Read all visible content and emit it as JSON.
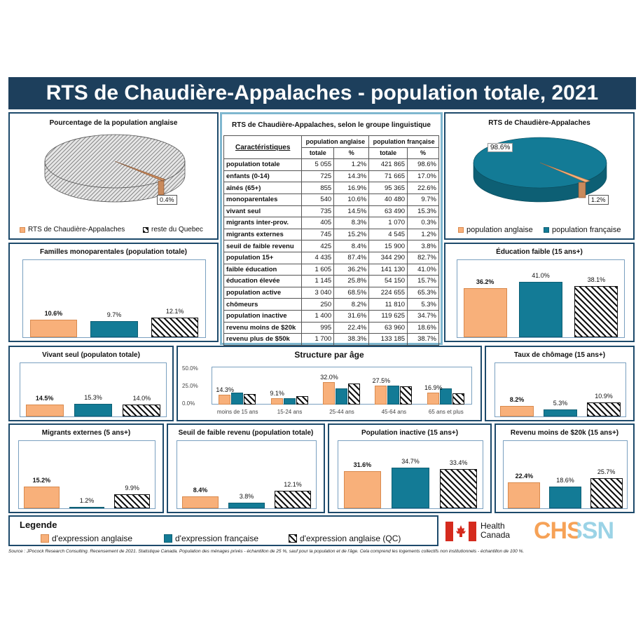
{
  "title": "RTS de Chaudière-Appalaches - population totale, 2021",
  "colors": {
    "anglais": "#f8b07a",
    "francais": "#137b96",
    "qc": "hatched"
  },
  "pie_left": {
    "title": "Pourcentage  de la population  anglaise",
    "label": "0.4%",
    "legend": [
      "RTS de Chaudière-Appalaches",
      "reste du Quebec"
    ]
  },
  "pie_right": {
    "title": "RTS de Chaudière-Appalaches",
    "label_big": "98.6%",
    "label_small": "1.2%",
    "legend": [
      "population anglaise",
      "population française"
    ]
  },
  "table": {
    "caption": "RTS de Chaudière-Appalaches, selon le groupe linguistique",
    "col_char": "Caractéristiques",
    "col_en": "population anglaise",
    "col_fr": "population française",
    "sub_total": "totale",
    "sub_pct": "%",
    "rows": [
      [
        "population totale",
        "5 055",
        "1.2%",
        "421 865",
        "98.6%"
      ],
      [
        "enfants (0-14)",
        "725",
        "14.3%",
        "71 665",
        "17.0%"
      ],
      [
        "aînés (65+)",
        "855",
        "16.9%",
        "95 365",
        "22.6%"
      ],
      [
        "monoparentales",
        "540",
        "10.6%",
        "40 480",
        "9.7%"
      ],
      [
        "vivant seul",
        "735",
        "14.5%",
        "63 490",
        "15.3%"
      ],
      [
        "migrants inter-prov.",
        "405",
        "8.3%",
        "1 070",
        "0.3%"
      ],
      [
        "migrants externes",
        "745",
        "15.2%",
        "4 545",
        "1.2%"
      ],
      [
        "seuil de faible revenu",
        "425",
        "8.4%",
        "15 900",
        "3.8%"
      ],
      [
        "population 15+",
        "4 435",
        "87.4%",
        "344 290",
        "82.7%"
      ],
      [
        "faible éducation",
        "1 605",
        "36.2%",
        "141 130",
        "41.0%"
      ],
      [
        "éducation élevée",
        "1 145",
        "25.8%",
        "54 150",
        "15.7%"
      ],
      [
        "population active",
        "3 040",
        "68.5%",
        "224 655",
        "65.3%"
      ],
      [
        "chômeurs",
        "250",
        "8.2%",
        "11 810",
        "5.3%"
      ],
      [
        "population inactive",
        "1 400",
        "31.6%",
        "119 625",
        "34.7%"
      ],
      [
        "revenu moins de $20k",
        "995",
        "22.4%",
        "63 960",
        "18.6%"
      ],
      [
        "revenu plus de $50k",
        "1 700",
        "38.3%",
        "133 185",
        "38.7%"
      ]
    ]
  },
  "chart_data": [
    {
      "id": "familles",
      "type": "bar",
      "title": "Familles monoparentales  (population  totale)",
      "values": [
        10.6,
        9.7,
        12.1
      ],
      "labels": [
        "10.6%",
        "9.7%",
        "12.1%"
      ],
      "ylim": [
        0,
        45
      ]
    },
    {
      "id": "education",
      "type": "bar",
      "title": "Éducation faible (15 ans+)",
      "values": [
        36.2,
        41.0,
        38.1
      ],
      "labels": [
        "36.2%",
        "41.0%",
        "38.1%"
      ],
      "ylim": [
        0,
        55
      ]
    },
    {
      "id": "vivant",
      "type": "bar",
      "title": "Vivant seul (populaton totale)",
      "values": [
        14.5,
        15.3,
        14.0
      ],
      "labels": [
        "14.5%",
        "15.3%",
        "14.0%"
      ],
      "ylim": [
        0,
        60
      ]
    },
    {
      "id": "chomage",
      "type": "bar",
      "title": "Taux de chômage (15 ans+)",
      "values": [
        8.2,
        5.3,
        10.9
      ],
      "labels": [
        "8.2%",
        "5.3%",
        "10.9%"
      ],
      "ylim": [
        0,
        40
      ]
    },
    {
      "id": "migrants",
      "type": "bar",
      "title": "Migrants externes (5 ans+)",
      "values": [
        15.2,
        1.2,
        9.9
      ],
      "labels": [
        "15.2%",
        "1.2%",
        "9.9%"
      ],
      "ylim": [
        0,
        45
      ]
    },
    {
      "id": "seuil",
      "type": "bar",
      "title": "Seuil de faible revenu (population totale)",
      "values": [
        8.4,
        3.8,
        12.1
      ],
      "labels": [
        "8.4%",
        "3.8%",
        "12.1%"
      ],
      "ylim": [
        0,
        45
      ]
    },
    {
      "id": "inactive",
      "type": "bar",
      "title": "Population  inactive (15 ans+)",
      "values": [
        31.6,
        34.7,
        33.4
      ],
      "labels": [
        "31.6%",
        "34.7%",
        "33.4%"
      ],
      "ylim": [
        0,
        55
      ]
    },
    {
      "id": "revenu",
      "type": "bar",
      "title": "Revenu moins de $20k (15 ans+)",
      "values": [
        22.4,
        18.6,
        25.7
      ],
      "labels": [
        "22.4%",
        "18.6%",
        "25.7%"
      ],
      "ylim": [
        0,
        55
      ]
    },
    {
      "id": "age",
      "type": "bar",
      "title": "Structure par âge",
      "categories": [
        "moins de 15 ans",
        "15-24 ans",
        "25-44 ans",
        "45-64 ans",
        "65 ans et plus"
      ],
      "series": [
        {
          "name": "d'expression anglaise",
          "values": [
            14.3,
            9.1,
            32.0,
            27.5,
            16.9
          ]
        },
        {
          "name": "d'expression française",
          "values": [
            17.0,
            9.0,
            23.0,
            27.5,
            22.6
          ]
        },
        {
          "name": "d'expression anglaise (QC)",
          "values": [
            15.5,
            12.0,
            30.0,
            26.0,
            16.0
          ]
        }
      ],
      "labels": [
        "14.3%",
        "9.1%",
        "32.0%",
        "27.5%",
        "16.9%"
      ],
      "ytick_labels": [
        "0.0%",
        "25.0%",
        "50.0%"
      ],
      "ylim": [
        0,
        50
      ]
    }
  ],
  "legend": {
    "title": "Legende",
    "items": [
      "d'expression anglaise",
      "d'expression française",
      "d'expression anglaise (QC)"
    ]
  },
  "logos": {
    "health_canada_1": "Health",
    "health_canada_2": "Canada",
    "chssn": "CHSSN"
  },
  "source": "Source : JPocock Research Consulting. Recensement de 2021. Statistique Canada. Population des ménages privés - échantillon de 25 %, sauf pour la population et de l'âge. Cela comprend les logements  collectifs non institutionnels - échantillon de 100 %."
}
